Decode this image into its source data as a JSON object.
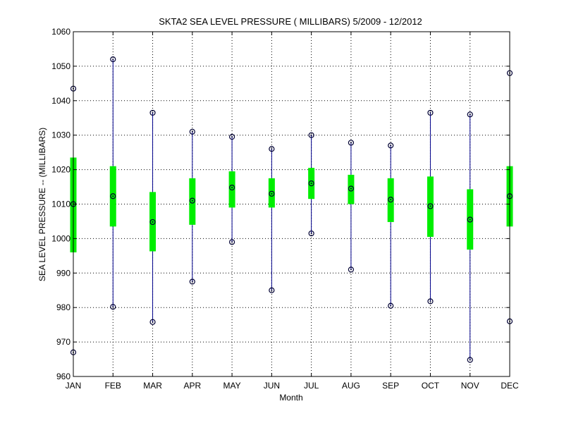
{
  "chart_data": {
    "type": "box-range",
    "title": "SKTA2  SEA LEVEL PRESSURE ( MILLIBARS) 5/2009 - 12/2012",
    "xlabel": "Month",
    "ylabel": "SEA LEVEL PRESSURE -- (MILLIBARS)",
    "ylim": [
      960,
      1060
    ],
    "yticks": [
      960,
      970,
      980,
      990,
      1000,
      1010,
      1020,
      1030,
      1040,
      1050,
      1060
    ],
    "grid": true,
    "categories": [
      "JAN",
      "FEB",
      "MAR",
      "APR",
      "MAY",
      "JUN",
      "JUL",
      "AUG",
      "SEP",
      "OCT",
      "NOV",
      "DEC"
    ],
    "series": [
      {
        "key": "min",
        "values": [
          967.0,
          980.2,
          975.8,
          987.5,
          999.0,
          985.0,
          1001.5,
          991.0,
          980.5,
          981.8,
          964.8,
          976.0
        ]
      },
      {
        "key": "max",
        "values": [
          1043.5,
          1052.0,
          1036.5,
          1031.0,
          1029.5,
          1026.0,
          1030.0,
          1027.8,
          1027.0,
          1036.5,
          1036.0,
          1048.0
        ]
      },
      {
        "key": "mean",
        "values": [
          1010.0,
          1012.3,
          1004.8,
          1011.0,
          1014.8,
          1013.0,
          1016.0,
          1014.5,
          1011.3,
          1009.4,
          1005.5,
          1012.3
        ]
      },
      {
        "key": "box_low",
        "values": [
          996.0,
          1003.5,
          996.3,
          1004.0,
          1009.0,
          1009.0,
          1011.5,
          1010.0,
          1004.8,
          1000.5,
          996.8,
          1003.5
        ]
      },
      {
        "key": "box_high",
        "values": [
          1023.5,
          1021.0,
          1013.5,
          1017.5,
          1019.5,
          1017.5,
          1020.5,
          1018.5,
          1017.5,
          1018.0,
          1014.3,
          1021.0
        ]
      }
    ],
    "colors": {
      "whisker": "#00008b",
      "box": "#00ee00",
      "marker": "#000033",
      "grid": "#000000",
      "axis": "#000000"
    }
  }
}
